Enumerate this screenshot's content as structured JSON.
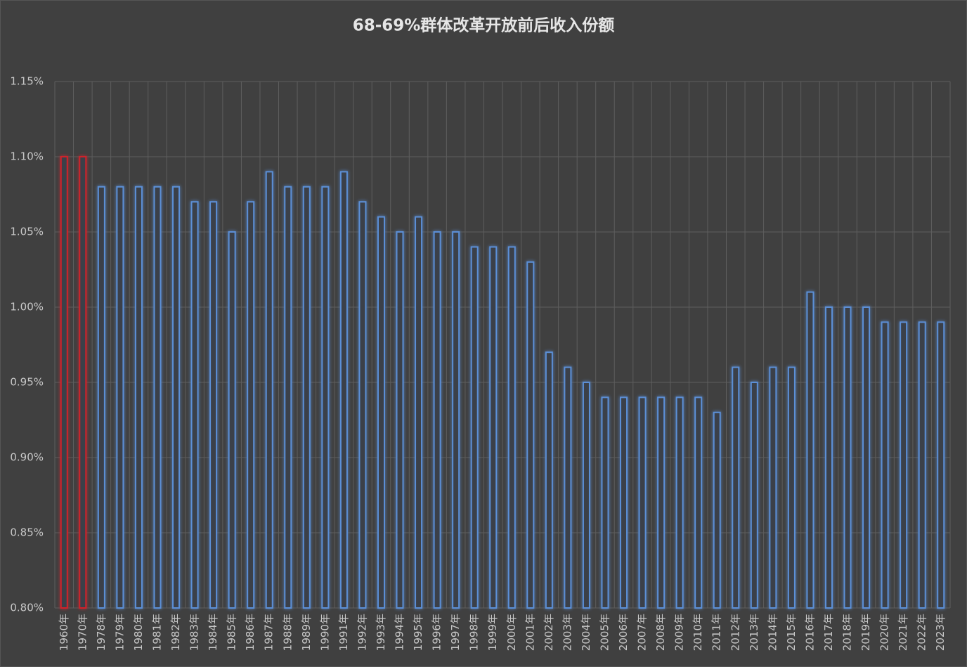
{
  "chart_data": {
    "type": "bar",
    "title": "68-69%群体改革开放前后收入份额",
    "categories": [
      "1960年",
      "1970年",
      "1978年",
      "1979年",
      "1980年",
      "1981年",
      "1982年",
      "1983年",
      "1984年",
      "1985年",
      "1986年",
      "1987年",
      "1988年",
      "1989年",
      "1990年",
      "1991年",
      "1992年",
      "1993年",
      "1994年",
      "1995年",
      "1996年",
      "1997年",
      "1998年",
      "1999年",
      "2000年",
      "2001年",
      "2002年",
      "2003年",
      "2004年",
      "2005年",
      "2006年",
      "2007年",
      "2008年",
      "2009年",
      "2010年",
      "2011年",
      "2012年",
      "2013年",
      "2014年",
      "2015年",
      "2016年",
      "2017年",
      "2018年",
      "2019年",
      "2020年",
      "2021年",
      "2022年",
      "2023年"
    ],
    "values": [
      1.1,
      1.1,
      1.08,
      1.08,
      1.08,
      1.08,
      1.08,
      1.07,
      1.07,
      1.05,
      1.07,
      1.09,
      1.08,
      1.08,
      1.08,
      1.09,
      1.07,
      1.06,
      1.05,
      1.06,
      1.05,
      1.05,
      1.04,
      1.04,
      1.04,
      1.03,
      0.97,
      0.96,
      0.95,
      0.94,
      0.94,
      0.94,
      0.94,
      0.94,
      0.94,
      0.93,
      0.96,
      0.95,
      0.96,
      0.96,
      1.01,
      1.0,
      1.0,
      1.0,
      0.99,
      0.99,
      0.99,
      0.99
    ],
    "colors": [
      "#d0202a",
      "#d0202a",
      "#5b8fd6",
      "#5b8fd6",
      "#5b8fd6",
      "#5b8fd6",
      "#5b8fd6",
      "#5b8fd6",
      "#5b8fd6",
      "#5b8fd6",
      "#5b8fd6",
      "#5b8fd6",
      "#5b8fd6",
      "#5b8fd6",
      "#5b8fd6",
      "#5b8fd6",
      "#5b8fd6",
      "#5b8fd6",
      "#5b8fd6",
      "#5b8fd6",
      "#5b8fd6",
      "#5b8fd6",
      "#5b8fd6",
      "#5b8fd6",
      "#5b8fd6",
      "#5b8fd6",
      "#5b8fd6",
      "#5b8fd6",
      "#5b8fd6",
      "#5b8fd6",
      "#5b8fd6",
      "#5b8fd6",
      "#5b8fd6",
      "#5b8fd6",
      "#5b8fd6",
      "#5b8fd6",
      "#5b8fd6",
      "#5b8fd6",
      "#5b8fd6",
      "#5b8fd6",
      "#5b8fd6",
      "#5b8fd6",
      "#5b8fd6",
      "#5b8fd6",
      "#5b8fd6",
      "#5b8fd6",
      "#5b8fd6",
      "#5b8fd6"
    ],
    "ylim": [
      0.8,
      1.15
    ],
    "yticks": [
      {
        "value": 0.8,
        "label": "0.80%"
      },
      {
        "value": 0.85,
        "label": "0.85%"
      },
      {
        "value": 0.9,
        "label": "0.90%"
      },
      {
        "value": 0.95,
        "label": "0.95%"
      },
      {
        "value": 1.0,
        "label": "1.00%"
      },
      {
        "value": 1.05,
        "label": "1.05%"
      },
      {
        "value": 1.1,
        "label": "1.10%"
      },
      {
        "value": 1.15,
        "label": "1.15%"
      }
    ],
    "grid": true
  }
}
